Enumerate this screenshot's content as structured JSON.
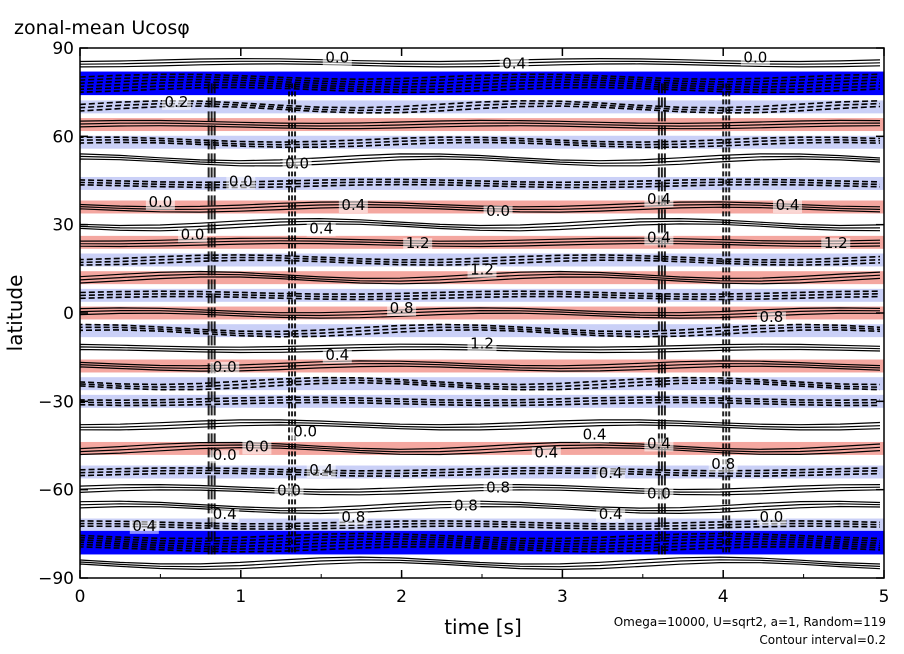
{
  "chart_data": {
    "type": "heatmap",
    "title": "zonal-mean Ucosφ",
    "xlabel": "time [s]",
    "ylabel": "latitude",
    "xlim": [
      0,
      5
    ],
    "ylim": [
      -90,
      90
    ],
    "x_ticks": [
      0,
      1,
      2,
      3,
      4,
      5
    ],
    "y_ticks": [
      -90,
      -60,
      -30,
      0,
      30,
      60,
      90
    ],
    "x_tick_labels": [
      "0",
      "1",
      "2",
      "3",
      "4",
      "5"
    ],
    "y_tick_labels": [
      "−90",
      "−60",
      "−30",
      "0",
      "30",
      "60",
      "90"
    ],
    "contour_interval": 0.2,
    "notes": [
      "Omega=10000, U=sqrt2, a=1, Random=119",
      "Contour interval=0.2"
    ],
    "colors": {
      "negative_strong": "#0000ff",
      "negative_weak": "#b8c0f4",
      "positive": "#f08a80",
      "line": "#000000"
    },
    "bands": [
      {
        "lat": 85,
        "value": 0.0
      },
      {
        "lat": 78,
        "value": -1.2
      },
      {
        "lat": 70,
        "value": -0.2
      },
      {
        "lat": 64,
        "value": 0.6
      },
      {
        "lat": 58,
        "value": -0.6
      },
      {
        "lat": 52,
        "value": 0.2
      },
      {
        "lat": 44,
        "value": -0.2
      },
      {
        "lat": 36,
        "value": 0.4
      },
      {
        "lat": 30,
        "value": 0.0
      },
      {
        "lat": 24,
        "value": 0.6
      },
      {
        "lat": 18,
        "value": -0.4
      },
      {
        "lat": 12,
        "value": 0.4
      },
      {
        "lat": 6,
        "value": -0.4
      },
      {
        "lat": 0,
        "value": 0.6
      },
      {
        "lat": -6,
        "value": -0.4
      },
      {
        "lat": -12,
        "value": 0.2
      },
      {
        "lat": -18,
        "value": 0.6
      },
      {
        "lat": -24,
        "value": -0.2
      },
      {
        "lat": -30,
        "value": -0.4
      },
      {
        "lat": -38,
        "value": 0.2
      },
      {
        "lat": -46,
        "value": 0.4
      },
      {
        "lat": -54,
        "value": -0.2
      },
      {
        "lat": -60,
        "value": 0.2
      },
      {
        "lat": -66,
        "value": 0.0
      },
      {
        "lat": -72,
        "value": -0.6
      },
      {
        "lat": -78,
        "value": -1.2
      },
      {
        "lat": -85,
        "value": 0.0
      }
    ],
    "contour_labels": [
      {
        "t": 1.6,
        "lat": 85,
        "text": "0.0"
      },
      {
        "t": 2.7,
        "lat": 83,
        "text": "0.4"
      },
      {
        "t": 4.2,
        "lat": 85,
        "text": "0.0"
      },
      {
        "t": 0.6,
        "lat": 70,
        "text": "0.2"
      },
      {
        "t": 1.35,
        "lat": 49,
        "text": "0.0"
      },
      {
        "t": 1.0,
        "lat": 43,
        "text": "0.0"
      },
      {
        "t": 0.5,
        "lat": 36,
        "text": "0.0"
      },
      {
        "t": 1.7,
        "lat": 35,
        "text": "0.4"
      },
      {
        "t": 2.6,
        "lat": 33,
        "text": "0.0"
      },
      {
        "t": 3.6,
        "lat": 37,
        "text": "0.4"
      },
      {
        "t": 4.4,
        "lat": 35,
        "text": "0.4"
      },
      {
        "t": 0.7,
        "lat": 25,
        "text": "0.0"
      },
      {
        "t": 1.5,
        "lat": 27,
        "text": "0.4"
      },
      {
        "t": 2.1,
        "lat": 22,
        "text": "1.2"
      },
      {
        "t": 4.7,
        "lat": 22,
        "text": "1.2"
      },
      {
        "t": 3.6,
        "lat": 24,
        "text": "0.4"
      },
      {
        "t": 2.5,
        "lat": 13,
        "text": "1.2"
      },
      {
        "t": 2.0,
        "lat": 0,
        "text": "0.8"
      },
      {
        "t": 4.3,
        "lat": -3,
        "text": "0.8"
      },
      {
        "t": 2.5,
        "lat": -12,
        "text": "1.2"
      },
      {
        "t": 1.6,
        "lat": -16,
        "text": "0.4"
      },
      {
        "t": 0.9,
        "lat": -20,
        "text": "0.0"
      },
      {
        "t": 1.4,
        "lat": -42,
        "text": "0.0"
      },
      {
        "t": 3.2,
        "lat": -43,
        "text": "0.4"
      },
      {
        "t": 3.6,
        "lat": -46,
        "text": "0.4"
      },
      {
        "t": 2.9,
        "lat": -49,
        "text": "0.4"
      },
      {
        "t": 1.1,
        "lat": -47,
        "text": "0.0"
      },
      {
        "t": 0.9,
        "lat": -50,
        "text": "0.0"
      },
      {
        "t": 1.5,
        "lat": -55,
        "text": "0.4"
      },
      {
        "t": 3.3,
        "lat": -56,
        "text": "0.4"
      },
      {
        "t": 4.0,
        "lat": -53,
        "text": "0.8"
      },
      {
        "t": 2.6,
        "lat": -61,
        "text": "0.8"
      },
      {
        "t": 1.3,
        "lat": -62,
        "text": "0.0"
      },
      {
        "t": 3.6,
        "lat": -63,
        "text": "0.0"
      },
      {
        "t": 0.9,
        "lat": -70,
        "text": "0.4"
      },
      {
        "t": 2.4,
        "lat": -67,
        "text": "0.8"
      },
      {
        "t": 1.7,
        "lat": -71,
        "text": "0.8"
      },
      {
        "t": 3.3,
        "lat": -70,
        "text": "0.4"
      },
      {
        "t": 4.3,
        "lat": -71,
        "text": "0.0"
      },
      {
        "t": 0.4,
        "lat": -74,
        "text": "0.4"
      }
    ]
  }
}
